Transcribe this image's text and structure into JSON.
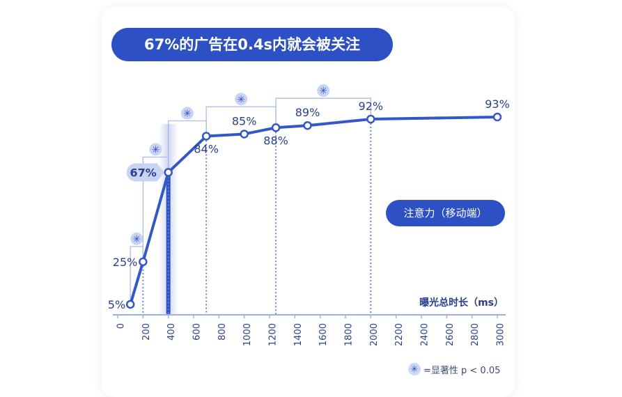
{
  "title": "67%的广告在0.4s内就会被关注",
  "legend_label": "注意力（移动端）",
  "footnote": {
    "symbol": "✳",
    "text": "=显著性 p < 0.05"
  },
  "colors": {
    "primary": "#2d50c4",
    "line": "#3457c8",
    "dashed": "#6d84d6",
    "bracket": "#aabbe6",
    "callout": "#c8d4f1",
    "axis": "#9fb0dc",
    "label": "#2a3f8f"
  },
  "chart_data": {
    "type": "line",
    "xlabel": "曝光总时长（ms）",
    "ylabel": "",
    "xlim": [
      0,
      3000
    ],
    "ylim": [
      0,
      100
    ],
    "xticks": [
      "0",
      "200",
      "400",
      "600",
      "800",
      "1000",
      "1200",
      "1400",
      "1600",
      "1800",
      "2000",
      "2200",
      "2400",
      "2600",
      "2800",
      "3000"
    ],
    "series": [
      {
        "points": [
          {
            "x": 100,
            "y": 5,
            "label": "5%"
          },
          {
            "x": 200,
            "y": 25,
            "label": "25%"
          },
          {
            "x": 400,
            "y": 67,
            "label": "67%"
          },
          {
            "x": 700,
            "y": 84,
            "label": "84%"
          },
          {
            "x": 1000,
            "y": 85,
            "label": "85%"
          },
          {
            "x": 1250,
            "y": 88,
            "label": "88%"
          },
          {
            "x": 1500,
            "y": 89,
            "label": "89%"
          },
          {
            "x": 2000,
            "y": 92,
            "label": "92%"
          },
          {
            "x": 3000,
            "y": 93,
            "label": "93%"
          }
        ]
      }
    ],
    "highlight_x": 400,
    "significance_symbol": "✳",
    "significance_brackets": [
      {
        "from": 100,
        "to": 200
      },
      {
        "from": 200,
        "to": 400
      },
      {
        "from": 400,
        "to": 700
      },
      {
        "from": 700,
        "to": 1250
      },
      {
        "from": 1250,
        "to": 2000
      }
    ],
    "dashed_guides": [
      200,
      400,
      700,
      1250,
      2000
    ]
  }
}
